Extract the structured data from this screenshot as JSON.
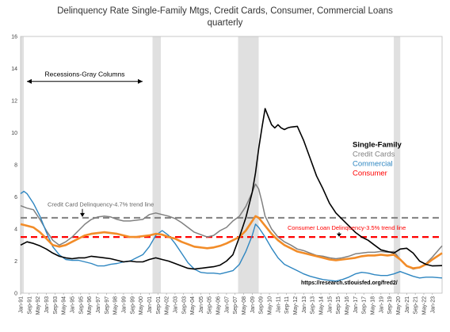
{
  "chart_data": {
    "type": "line",
    "title": "Delinquency Rate Single-Family Mtgs, Credit Cards, Consumer, Commercial Loans",
    "subtitle": "quarterly",
    "ylim": [
      0,
      16
    ],
    "yticks": [
      0,
      2,
      4,
      6,
      8,
      10,
      12,
      14,
      16
    ],
    "xlim": [
      1991.0,
      2023.75
    ],
    "x_tick_labels": [
      "Jan-91",
      "Sep-91",
      "May-92",
      "Jan-93",
      "Sep-93",
      "May-94",
      "Jan-95",
      "Sep-95",
      "May-96",
      "Jan-97",
      "Sep-97",
      "May-98",
      "Jan-99",
      "Sep-99",
      "May-00",
      "Jan-01",
      "Sep-01",
      "May-02",
      "Jan-03",
      "Sep-03",
      "May-04",
      "Jan-05",
      "Sep-05",
      "May-06",
      "Jan-07",
      "Sep-07",
      "May-08",
      "Jan-09",
      "Sep-09",
      "May-10",
      "Jan-11",
      "Sep-11",
      "May-12",
      "Jan-13",
      "Sep-13",
      "May-14",
      "Jan-15",
      "Sep-15",
      "May-16",
      "Jan-17",
      "Sep-17",
      "May-18",
      "Jan-19",
      "Sep-19",
      "May-20",
      "Jan-21",
      "Sep-21",
      "May-22",
      "Jan-23"
    ],
    "recessions": [
      [
        1991.0,
        1991.25
      ],
      [
        2001.25,
        2001.9
      ],
      [
        2007.9,
        2009.5
      ],
      [
        2020.0,
        2020.5
      ]
    ],
    "series": [
      {
        "name": "Single-Family",
        "color": "#000000",
        "points": [
          [
            1991.0,
            3.0
          ],
          [
            1991.5,
            3.2
          ],
          [
            1992.0,
            3.1
          ],
          [
            1992.5,
            2.95
          ],
          [
            1993.0,
            2.75
          ],
          [
            1993.5,
            2.5
          ],
          [
            1994.0,
            2.3
          ],
          [
            1994.5,
            2.2
          ],
          [
            1995.0,
            2.15
          ],
          [
            1995.5,
            2.2
          ],
          [
            1996.0,
            2.2
          ],
          [
            1996.5,
            2.3
          ],
          [
            1997.0,
            2.25
          ],
          [
            1997.5,
            2.2
          ],
          [
            1998.0,
            2.15
          ],
          [
            1998.5,
            2.05
          ],
          [
            1999.0,
            1.95
          ],
          [
            1999.5,
            2.0
          ],
          [
            2000.0,
            1.95
          ],
          [
            2000.5,
            1.95
          ],
          [
            2001.0,
            2.1
          ],
          [
            2001.5,
            2.2
          ],
          [
            2002.0,
            2.1
          ],
          [
            2002.5,
            2.0
          ],
          [
            2003.0,
            1.85
          ],
          [
            2003.5,
            1.7
          ],
          [
            2004.0,
            1.55
          ],
          [
            2004.5,
            1.5
          ],
          [
            2005.0,
            1.55
          ],
          [
            2005.5,
            1.6
          ],
          [
            2006.0,
            1.65
          ],
          [
            2006.5,
            1.75
          ],
          [
            2007.0,
            2.0
          ],
          [
            2007.5,
            2.4
          ],
          [
            2008.0,
            3.5
          ],
          [
            2008.5,
            4.7
          ],
          [
            2009.0,
            6.3
          ],
          [
            2009.25,
            7.5
          ],
          [
            2009.5,
            9.0
          ],
          [
            2009.75,
            10.3
          ],
          [
            2010.0,
            11.5
          ],
          [
            2010.25,
            11.0
          ],
          [
            2010.5,
            10.5
          ],
          [
            2010.75,
            10.3
          ],
          [
            2011.0,
            10.5
          ],
          [
            2011.25,
            10.3
          ],
          [
            2011.5,
            10.2
          ],
          [
            2011.75,
            10.3
          ],
          [
            2012.0,
            10.35
          ],
          [
            2012.5,
            10.4
          ],
          [
            2013.0,
            9.5
          ],
          [
            2013.5,
            8.4
          ],
          [
            2014.0,
            7.3
          ],
          [
            2014.5,
            6.5
          ],
          [
            2015.0,
            5.6
          ],
          [
            2015.5,
            5.0
          ],
          [
            2016.0,
            4.6
          ],
          [
            2016.5,
            4.2
          ],
          [
            2017.0,
            3.8
          ],
          [
            2017.5,
            3.5
          ],
          [
            2018.0,
            3.3
          ],
          [
            2018.5,
            3.0
          ],
          [
            2019.0,
            2.7
          ],
          [
            2019.5,
            2.6
          ],
          [
            2020.0,
            2.5
          ],
          [
            2020.5,
            2.75
          ],
          [
            2021.0,
            2.8
          ],
          [
            2021.5,
            2.5
          ],
          [
            2022.0,
            2.0
          ],
          [
            2022.5,
            1.8
          ],
          [
            2023.0,
            1.7
          ],
          [
            2023.75,
            1.72
          ]
        ]
      },
      {
        "name": "Credit Cards",
        "color": "#808080",
        "points": [
          [
            1991.0,
            5.45
          ],
          [
            1991.5,
            5.3
          ],
          [
            1992.0,
            5.2
          ],
          [
            1992.5,
            4.6
          ],
          [
            1993.0,
            3.9
          ],
          [
            1993.5,
            3.3
          ],
          [
            1994.0,
            3.0
          ],
          [
            1994.5,
            3.2
          ],
          [
            1995.0,
            3.5
          ],
          [
            1995.5,
            3.9
          ],
          [
            1996.0,
            4.3
          ],
          [
            1996.5,
            4.6
          ],
          [
            1997.0,
            4.75
          ],
          [
            1997.5,
            4.8
          ],
          [
            1998.0,
            4.75
          ],
          [
            1998.5,
            4.6
          ],
          [
            1999.0,
            4.5
          ],
          [
            1999.5,
            4.5
          ],
          [
            2000.0,
            4.55
          ],
          [
            2000.5,
            4.6
          ],
          [
            2001.0,
            4.9
          ],
          [
            2001.5,
            5.0
          ],
          [
            2002.0,
            4.9
          ],
          [
            2002.5,
            4.8
          ],
          [
            2003.0,
            4.65
          ],
          [
            2003.5,
            4.4
          ],
          [
            2004.0,
            4.1
          ],
          [
            2004.5,
            3.8
          ],
          [
            2005.0,
            3.65
          ],
          [
            2005.5,
            3.5
          ],
          [
            2006.0,
            3.6
          ],
          [
            2006.5,
            3.9
          ],
          [
            2007.0,
            4.1
          ],
          [
            2007.5,
            4.5
          ],
          [
            2008.0,
            4.8
          ],
          [
            2008.5,
            5.4
          ],
          [
            2009.0,
            6.3
          ],
          [
            2009.25,
            6.8
          ],
          [
            2009.5,
            6.5
          ],
          [
            2009.75,
            5.7
          ],
          [
            2010.0,
            4.8
          ],
          [
            2010.5,
            4.0
          ],
          [
            2011.0,
            3.5
          ],
          [
            2011.5,
            3.2
          ],
          [
            2012.0,
            3.0
          ],
          [
            2012.5,
            2.75
          ],
          [
            2013.0,
            2.65
          ],
          [
            2013.5,
            2.5
          ],
          [
            2014.0,
            2.35
          ],
          [
            2014.5,
            2.3
          ],
          [
            2015.0,
            2.2
          ],
          [
            2015.5,
            2.15
          ],
          [
            2016.0,
            2.2
          ],
          [
            2016.5,
            2.3
          ],
          [
            2017.0,
            2.45
          ],
          [
            2017.5,
            2.5
          ],
          [
            2018.0,
            2.55
          ],
          [
            2018.5,
            2.55
          ],
          [
            2019.0,
            2.6
          ],
          [
            2019.5,
            2.55
          ],
          [
            2020.0,
            2.6
          ],
          [
            2020.5,
            2.1
          ],
          [
            2021.0,
            1.7
          ],
          [
            2021.5,
            1.5
          ],
          [
            2022.0,
            1.6
          ],
          [
            2022.5,
            1.85
          ],
          [
            2023.0,
            2.25
          ],
          [
            2023.75,
            2.95
          ]
        ]
      },
      {
        "name": "Commercial",
        "color": "#2e86c1",
        "points": [
          [
            1991.0,
            6.2
          ],
          [
            1991.25,
            6.35
          ],
          [
            1991.5,
            6.2
          ],
          [
            1992.0,
            5.6
          ],
          [
            1992.5,
            4.8
          ],
          [
            1993.0,
            3.8
          ],
          [
            1993.5,
            2.9
          ],
          [
            1994.0,
            2.4
          ],
          [
            1994.5,
            2.1
          ],
          [
            1995.0,
            2.05
          ],
          [
            1995.5,
            2.05
          ],
          [
            1996.0,
            1.95
          ],
          [
            1996.5,
            1.85
          ],
          [
            1997.0,
            1.7
          ],
          [
            1997.5,
            1.7
          ],
          [
            1998.0,
            1.8
          ],
          [
            1998.5,
            1.85
          ],
          [
            1999.0,
            1.95
          ],
          [
            1999.5,
            2.0
          ],
          [
            2000.0,
            2.2
          ],
          [
            2000.5,
            2.4
          ],
          [
            2001.0,
            2.9
          ],
          [
            2001.5,
            3.6
          ],
          [
            2002.0,
            3.9
          ],
          [
            2002.5,
            3.6
          ],
          [
            2003.0,
            3.1
          ],
          [
            2003.5,
            2.5
          ],
          [
            2004.0,
            1.9
          ],
          [
            2004.5,
            1.5
          ],
          [
            2005.0,
            1.3
          ],
          [
            2005.5,
            1.25
          ],
          [
            2006.0,
            1.25
          ],
          [
            2006.5,
            1.2
          ],
          [
            2007.0,
            1.3
          ],
          [
            2007.5,
            1.4
          ],
          [
            2008.0,
            1.8
          ],
          [
            2008.5,
            2.6
          ],
          [
            2009.0,
            3.6
          ],
          [
            2009.25,
            4.3
          ],
          [
            2009.5,
            4.1
          ],
          [
            2010.0,
            3.5
          ],
          [
            2010.5,
            2.8
          ],
          [
            2011.0,
            2.2
          ],
          [
            2011.5,
            1.8
          ],
          [
            2012.0,
            1.6
          ],
          [
            2012.5,
            1.4
          ],
          [
            2013.0,
            1.2
          ],
          [
            2013.5,
            1.05
          ],
          [
            2014.0,
            0.95
          ],
          [
            2014.5,
            0.85
          ],
          [
            2015.0,
            0.8
          ],
          [
            2015.5,
            0.75
          ],
          [
            2016.0,
            0.85
          ],
          [
            2016.5,
            1.0
          ],
          [
            2017.0,
            1.2
          ],
          [
            2017.5,
            1.3
          ],
          [
            2018.0,
            1.25
          ],
          [
            2018.5,
            1.15
          ],
          [
            2019.0,
            1.1
          ],
          [
            2019.5,
            1.1
          ],
          [
            2020.0,
            1.2
          ],
          [
            2020.5,
            1.35
          ],
          [
            2021.0,
            1.2
          ],
          [
            2021.5,
            1.05
          ],
          [
            2022.0,
            0.95
          ],
          [
            2022.5,
            1.0
          ],
          [
            2023.0,
            1.0
          ],
          [
            2023.75,
            0.95
          ]
        ]
      },
      {
        "name": "Consumer",
        "color": "#f28c28",
        "points": [
          [
            1991.0,
            4.3
          ],
          [
            1991.5,
            4.2
          ],
          [
            1992.0,
            4.1
          ],
          [
            1992.5,
            3.8
          ],
          [
            1993.0,
            3.4
          ],
          [
            1993.5,
            3.0
          ],
          [
            1994.0,
            2.9
          ],
          [
            1994.5,
            3.0
          ],
          [
            1995.0,
            3.2
          ],
          [
            1995.5,
            3.4
          ],
          [
            1996.0,
            3.6
          ],
          [
            1996.5,
            3.7
          ],
          [
            1997.0,
            3.75
          ],
          [
            1997.5,
            3.8
          ],
          [
            1998.0,
            3.75
          ],
          [
            1998.5,
            3.7
          ],
          [
            1999.0,
            3.6
          ],
          [
            1999.5,
            3.5
          ],
          [
            2000.0,
            3.5
          ],
          [
            2000.5,
            3.55
          ],
          [
            2001.0,
            3.6
          ],
          [
            2001.5,
            3.7
          ],
          [
            2002.0,
            3.65
          ],
          [
            2002.5,
            3.5
          ],
          [
            2003.0,
            3.4
          ],
          [
            2003.5,
            3.2
          ],
          [
            2004.0,
            3.05
          ],
          [
            2004.5,
            2.9
          ],
          [
            2005.0,
            2.85
          ],
          [
            2005.5,
            2.8
          ],
          [
            2006.0,
            2.85
          ],
          [
            2006.5,
            2.95
          ],
          [
            2007.0,
            3.1
          ],
          [
            2007.5,
            3.3
          ],
          [
            2008.0,
            3.5
          ],
          [
            2008.5,
            3.9
          ],
          [
            2009.0,
            4.5
          ],
          [
            2009.25,
            4.8
          ],
          [
            2009.5,
            4.7
          ],
          [
            2010.0,
            4.2
          ],
          [
            2010.5,
            3.7
          ],
          [
            2011.0,
            3.3
          ],
          [
            2011.5,
            3.0
          ],
          [
            2012.0,
            2.8
          ],
          [
            2012.5,
            2.6
          ],
          [
            2013.0,
            2.5
          ],
          [
            2013.5,
            2.4
          ],
          [
            2014.0,
            2.3
          ],
          [
            2014.5,
            2.2
          ],
          [
            2015.0,
            2.1
          ],
          [
            2015.5,
            2.05
          ],
          [
            2016.0,
            2.1
          ],
          [
            2016.5,
            2.15
          ],
          [
            2017.0,
            2.2
          ],
          [
            2017.5,
            2.3
          ],
          [
            2018.0,
            2.35
          ],
          [
            2018.5,
            2.35
          ],
          [
            2019.0,
            2.4
          ],
          [
            2019.5,
            2.35
          ],
          [
            2020.0,
            2.4
          ],
          [
            2020.5,
            2.1
          ],
          [
            2021.0,
            1.7
          ],
          [
            2021.5,
            1.55
          ],
          [
            2022.0,
            1.6
          ],
          [
            2022.5,
            1.8
          ],
          [
            2023.0,
            2.1
          ],
          [
            2023.75,
            2.5
          ]
        ]
      }
    ],
    "reference_lines": [
      {
        "label": "Credit Card Delinquency-4.7% trend line",
        "value": 4.7,
        "color": "#808080"
      },
      {
        "label": "Consumer Loan Delinquency-3.5% trend line",
        "value": 3.5,
        "color": "#ff0000"
      }
    ],
    "annotations": {
      "recessions_label": "Recessions-Gray Columns",
      "source": "https://research.stlouisfed.org/fred2/"
    },
    "legend": {
      "placement": "right-middle",
      "entries": [
        {
          "label": "Single-Family",
          "color": "#000000"
        },
        {
          "label": "Credit Cards",
          "color": "#808080"
        },
        {
          "label": "Commercial",
          "color": "#2e86c1"
        },
        {
          "label": "Consumer",
          "color": "#ff0000"
        }
      ]
    },
    "grid": false
  }
}
